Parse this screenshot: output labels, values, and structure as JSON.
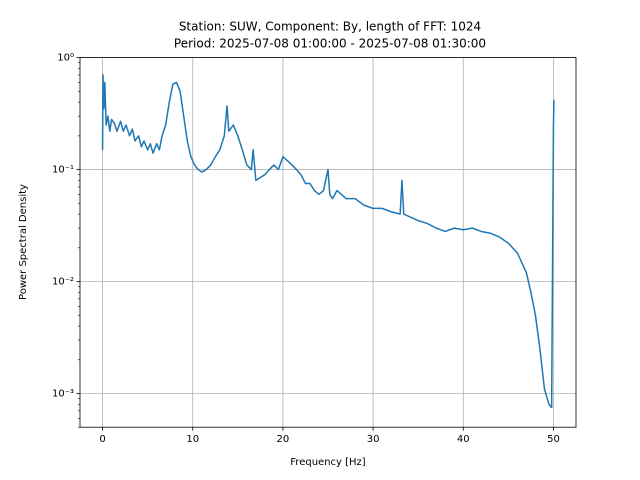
{
  "chart_data": {
    "type": "line",
    "title": "Station: SUW, Component: By, length of FFT: 1024",
    "subtitle": "Period: 2025-07-08 01:00:00 - 2025-07-08 01:30:00",
    "x_label": "Frequency [Hz]",
    "y_label": "Power Spectral Density",
    "log_y": true,
    "grid": true,
    "xlim": [
      -2.5,
      52.5
    ],
    "xticks": [
      0,
      10,
      20,
      30,
      40,
      50
    ],
    "ylim": [
      0.0005,
      1
    ],
    "yticks": [
      {
        "value": 0.001,
        "label": "10⁻³"
      },
      {
        "value": 0.01,
        "label": "10⁻²"
      },
      {
        "value": 0.1,
        "label": "10⁻¹"
      },
      {
        "value": 1,
        "label": "10⁰"
      }
    ],
    "series": [
      {
        "color": "#1f77b4",
        "x": [
          0,
          0.05,
          0.15,
          0.25,
          0.4,
          0.6,
          0.8,
          1.0,
          1.3,
          1.6,
          2.0,
          2.3,
          2.6,
          3.0,
          3.3,
          3.6,
          4.0,
          4.3,
          4.6,
          5.0,
          5.3,
          5.6,
          6.0,
          6.3,
          6.6,
          7.0,
          7.4,
          7.8,
          8.2,
          8.6,
          9.0,
          9.4,
          9.8,
          10.2,
          10.6,
          11.0,
          11.5,
          12.0,
          12.5,
          13.0,
          13.5,
          13.8,
          14.0,
          14.5,
          15.0,
          15.5,
          16.0,
          16.5,
          16.7,
          17.0,
          17.5,
          18.0,
          18.5,
          19.0,
          19.5,
          20.0,
          20.5,
          21.0,
          21.5,
          22.0,
          22.5,
          23.0,
          23.5,
          24.0,
          24.5,
          25.0,
          25.2,
          25.5,
          26.0,
          26.5,
          27.0,
          28.0,
          29.0,
          30.0,
          31.0,
          32.0,
          33.0,
          33.2,
          33.4,
          34.0,
          35.0,
          36.0,
          37.0,
          38.0,
          39.0,
          40.0,
          41.0,
          42.0,
          43.0,
          44.0,
          45.0,
          46.0,
          47.0,
          47.5,
          48.0,
          48.5,
          49.0,
          49.5,
          49.8,
          50.0,
          50.05
        ],
        "values": [
          0.15,
          0.7,
          0.35,
          0.6,
          0.25,
          0.3,
          0.22,
          0.28,
          0.26,
          0.22,
          0.27,
          0.22,
          0.25,
          0.2,
          0.23,
          0.18,
          0.2,
          0.16,
          0.18,
          0.15,
          0.17,
          0.14,
          0.17,
          0.15,
          0.2,
          0.25,
          0.4,
          0.58,
          0.6,
          0.5,
          0.3,
          0.18,
          0.13,
          0.11,
          0.1,
          0.095,
          0.1,
          0.11,
          0.13,
          0.15,
          0.2,
          0.37,
          0.22,
          0.25,
          0.2,
          0.15,
          0.11,
          0.1,
          0.15,
          0.08,
          0.085,
          0.09,
          0.1,
          0.11,
          0.1,
          0.13,
          0.12,
          0.11,
          0.1,
          0.09,
          0.075,
          0.075,
          0.065,
          0.06,
          0.065,
          0.1,
          0.06,
          0.055,
          0.065,
          0.06,
          0.055,
          0.055,
          0.048,
          0.045,
          0.045,
          0.042,
          0.04,
          0.08,
          0.04,
          0.038,
          0.035,
          0.033,
          0.03,
          0.028,
          0.03,
          0.029,
          0.03,
          0.028,
          0.027,
          0.025,
          0.022,
          0.018,
          0.012,
          0.008,
          0.005,
          0.0025,
          0.0011,
          0.0008,
          0.00075,
          0.25,
          0.42
        ]
      }
    ]
  }
}
